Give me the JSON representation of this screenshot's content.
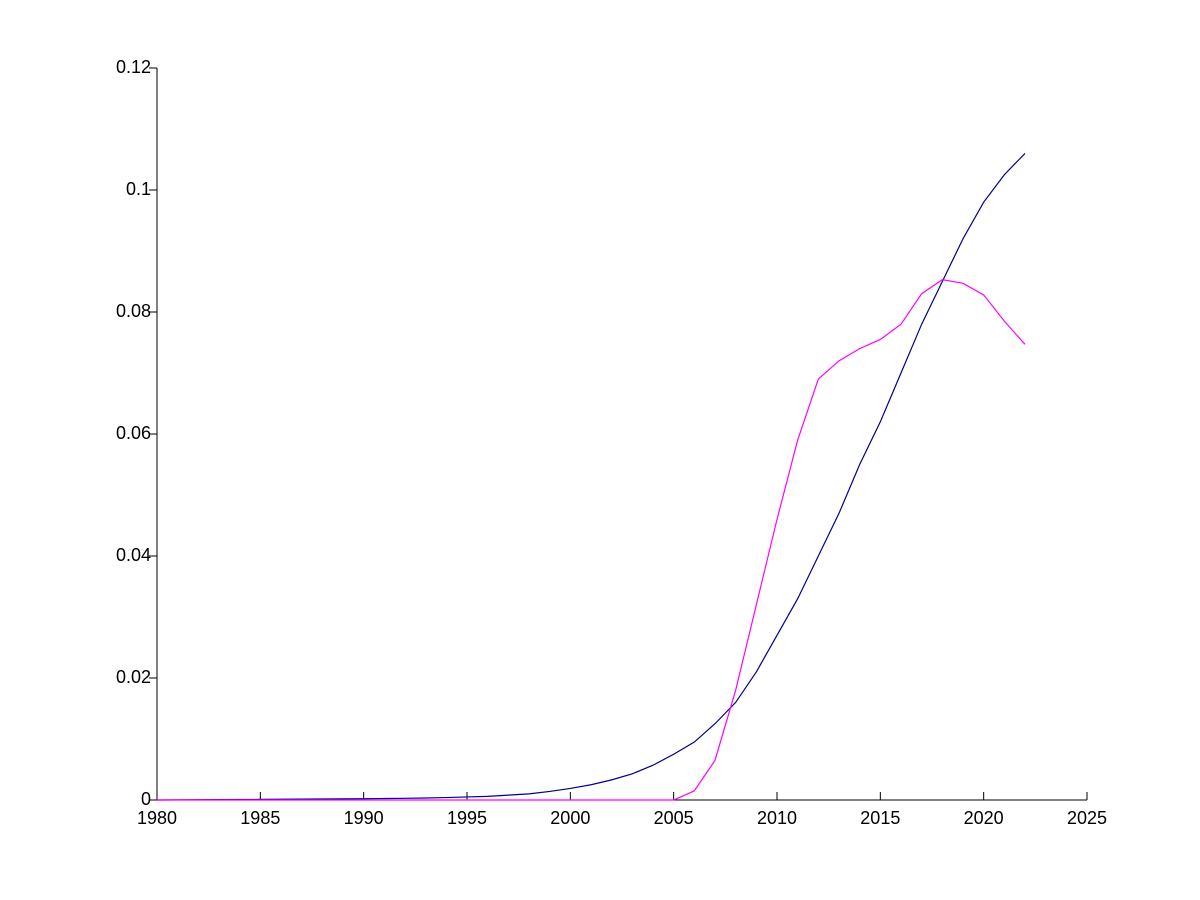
{
  "chart_data": {
    "type": "line",
    "x": [
      1980,
      1981,
      1982,
      1983,
      1984,
      1985,
      1986,
      1987,
      1988,
      1989,
      1990,
      1991,
      1992,
      1993,
      1994,
      1995,
      1996,
      1997,
      1998,
      1999,
      2000,
      2001,
      2002,
      2003,
      2004,
      2005,
      2006,
      2007,
      2008,
      2009,
      2010,
      2011,
      2012,
      2013,
      2014,
      2015,
      2016,
      2017,
      2018,
      2019,
      2020,
      2021,
      2022
    ],
    "series": [
      {
        "color": "#00008b",
        "values": [
          0,
          2e-05,
          4e-05,
          6e-05,
          8e-05,
          0.0001,
          0.00012,
          0.00014,
          0.00016,
          0.00018,
          0.0002,
          0.00024,
          0.00028,
          0.00033,
          0.0004,
          0.0005,
          0.0006,
          0.0008,
          0.001,
          0.0014,
          0.0019,
          0.0025,
          0.0033,
          0.0043,
          0.0057,
          0.0075,
          0.0095,
          0.0125,
          0.016,
          0.021,
          0.027,
          0.033,
          0.04,
          0.047,
          0.055,
          0.062,
          0.07,
          0.078,
          0.085,
          0.092,
          0.098,
          0.1025,
          0.106
        ]
      },
      {
        "color": "#ff00ff",
        "values": [
          0,
          0,
          0,
          0,
          0,
          0,
          0,
          0,
          0,
          0,
          0,
          0,
          0,
          0,
          0,
          0,
          0,
          0,
          0,
          0,
          0,
          0,
          0,
          0,
          0,
          0,
          0.0015,
          0.0065,
          0.018,
          0.032,
          0.046,
          0.059,
          0.069,
          0.072,
          0.074,
          0.0755,
          0.078,
          0.083,
          0.0853,
          0.0847,
          0.0828,
          0.0785,
          0.0747
        ]
      }
    ],
    "xlim": [
      1980,
      2025
    ],
    "xticks": [
      1980,
      1985,
      1990,
      1995,
      2000,
      2005,
      2010,
      2015,
      2020,
      2025
    ],
    "ylim": [
      0,
      0.12
    ],
    "yticks": [
      0,
      0.02,
      0.04,
      0.06,
      0.08,
      0.1,
      0.12
    ]
  }
}
